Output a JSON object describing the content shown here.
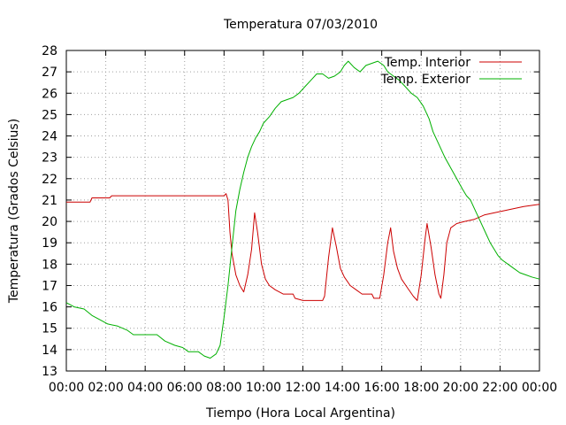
{
  "chart_data": {
    "type": "line",
    "title": "Temperatura 07/03/2010",
    "xlabel": "Tiempo (Hora Local Argentina)",
    "ylabel": "Temperatura (Grados Celsius)",
    "x_ticks": [
      "00:00",
      "02:00",
      "04:00",
      "06:00",
      "08:00",
      "10:00",
      "12:00",
      "14:00",
      "16:00",
      "18:00",
      "20:00",
      "22:00",
      "00:00"
    ],
    "y_ticks": [
      "13",
      "14",
      "15",
      "16",
      "17",
      "18",
      "19",
      "20",
      "21",
      "22",
      "23",
      "24",
      "25",
      "26",
      "27",
      "28"
    ],
    "xlim": [
      0,
      24
    ],
    "ylim": [
      13,
      28
    ],
    "grid": true,
    "legend_position": "top-right",
    "series": [
      {
        "name": "Temp. Interior",
        "color": "#cc0000",
        "points": [
          [
            0,
            20.9
          ],
          [
            1.2,
            20.9
          ],
          [
            1.3,
            21.1
          ],
          [
            2.2,
            21.1
          ],
          [
            2.3,
            21.2
          ],
          [
            8.0,
            21.2
          ],
          [
            8.1,
            21.3
          ],
          [
            8.2,
            21.0
          ],
          [
            8.3,
            19.5
          ],
          [
            8.4,
            18.5
          ],
          [
            8.6,
            17.5
          ],
          [
            8.8,
            17.0
          ],
          [
            9.0,
            16.7
          ],
          [
            9.2,
            17.5
          ],
          [
            9.4,
            18.7
          ],
          [
            9.55,
            20.4
          ],
          [
            9.7,
            19.5
          ],
          [
            9.9,
            18.0
          ],
          [
            10.1,
            17.3
          ],
          [
            10.3,
            17.0
          ],
          [
            10.6,
            16.8
          ],
          [
            11.0,
            16.6
          ],
          [
            11.5,
            16.6
          ],
          [
            11.6,
            16.4
          ],
          [
            12.0,
            16.3
          ],
          [
            13.0,
            16.3
          ],
          [
            13.1,
            16.5
          ],
          [
            13.3,
            18.3
          ],
          [
            13.5,
            19.7
          ],
          [
            13.7,
            18.8
          ],
          [
            13.9,
            17.8
          ],
          [
            14.1,
            17.4
          ],
          [
            14.4,
            17.0
          ],
          [
            14.7,
            16.8
          ],
          [
            15.0,
            16.6
          ],
          [
            15.5,
            16.6
          ],
          [
            15.6,
            16.4
          ],
          [
            15.9,
            16.4
          ],
          [
            16.1,
            17.5
          ],
          [
            16.3,
            19.0
          ],
          [
            16.45,
            19.7
          ],
          [
            16.6,
            18.6
          ],
          [
            16.8,
            17.8
          ],
          [
            17.0,
            17.3
          ],
          [
            17.3,
            16.9
          ],
          [
            17.6,
            16.5
          ],
          [
            17.8,
            16.3
          ],
          [
            18.0,
            17.5
          ],
          [
            18.2,
            19.2
          ],
          [
            18.3,
            19.9
          ],
          [
            18.5,
            18.8
          ],
          [
            18.7,
            17.5
          ],
          [
            18.9,
            16.6
          ],
          [
            19.0,
            16.4
          ],
          [
            19.15,
            17.5
          ],
          [
            19.3,
            19.0
          ],
          [
            19.5,
            19.7
          ],
          [
            19.8,
            19.9
          ],
          [
            20.2,
            20.0
          ],
          [
            20.7,
            20.1
          ],
          [
            21.2,
            20.3
          ],
          [
            21.7,
            20.4
          ],
          [
            22.2,
            20.5
          ],
          [
            22.7,
            20.6
          ],
          [
            23.2,
            20.7
          ],
          [
            24.0,
            20.8
          ]
        ]
      },
      {
        "name": "Temp. Exterior",
        "color": "#00b000",
        "points": [
          [
            0,
            16.2
          ],
          [
            0.4,
            16.0
          ],
          [
            0.9,
            15.9
          ],
          [
            1.3,
            15.6
          ],
          [
            1.7,
            15.4
          ],
          [
            2.1,
            15.2
          ],
          [
            2.6,
            15.1
          ],
          [
            3.1,
            14.9
          ],
          [
            3.4,
            14.7
          ],
          [
            4.0,
            14.7
          ],
          [
            4.6,
            14.7
          ],
          [
            5.0,
            14.4
          ],
          [
            5.5,
            14.2
          ],
          [
            5.9,
            14.1
          ],
          [
            6.2,
            13.9
          ],
          [
            6.7,
            13.9
          ],
          [
            7.0,
            13.7
          ],
          [
            7.3,
            13.6
          ],
          [
            7.6,
            13.8
          ],
          [
            7.8,
            14.2
          ],
          [
            8.0,
            15.5
          ],
          [
            8.2,
            17.0
          ],
          [
            8.4,
            18.8
          ],
          [
            8.6,
            20.5
          ],
          [
            8.8,
            21.5
          ],
          [
            9.0,
            22.3
          ],
          [
            9.2,
            23.0
          ],
          [
            9.4,
            23.5
          ],
          [
            9.6,
            23.9
          ],
          [
            9.8,
            24.2
          ],
          [
            10.0,
            24.6
          ],
          [
            10.3,
            24.9
          ],
          [
            10.6,
            25.3
          ],
          [
            10.9,
            25.6
          ],
          [
            11.2,
            25.7
          ],
          [
            11.5,
            25.8
          ],
          [
            11.8,
            26.0
          ],
          [
            12.1,
            26.3
          ],
          [
            12.4,
            26.6
          ],
          [
            12.7,
            26.9
          ],
          [
            13.0,
            26.9
          ],
          [
            13.3,
            26.7
          ],
          [
            13.6,
            26.8
          ],
          [
            13.9,
            27.0
          ],
          [
            14.1,
            27.3
          ],
          [
            14.3,
            27.5
          ],
          [
            14.6,
            27.2
          ],
          [
            14.9,
            27.0
          ],
          [
            15.2,
            27.3
          ],
          [
            15.5,
            27.4
          ],
          [
            15.8,
            27.5
          ],
          [
            16.1,
            27.3
          ],
          [
            16.3,
            27.0
          ],
          [
            16.6,
            26.8
          ],
          [
            16.9,
            26.6
          ],
          [
            17.2,
            26.3
          ],
          [
            17.5,
            26.0
          ],
          [
            17.8,
            25.8
          ],
          [
            18.1,
            25.4
          ],
          [
            18.4,
            24.8
          ],
          [
            18.6,
            24.2
          ],
          [
            18.9,
            23.6
          ],
          [
            19.2,
            23.0
          ],
          [
            19.5,
            22.5
          ],
          [
            19.8,
            22.0
          ],
          [
            20.1,
            21.5
          ],
          [
            20.3,
            21.2
          ],
          [
            20.5,
            21.0
          ],
          [
            20.7,
            20.6
          ],
          [
            20.9,
            20.2
          ],
          [
            21.1,
            19.8
          ],
          [
            21.3,
            19.4
          ],
          [
            21.5,
            19.0
          ],
          [
            21.7,
            18.7
          ],
          [
            21.9,
            18.4
          ],
          [
            22.1,
            18.2
          ],
          [
            22.4,
            18.0
          ],
          [
            22.7,
            17.8
          ],
          [
            23.0,
            17.6
          ],
          [
            23.3,
            17.5
          ],
          [
            23.6,
            17.4
          ],
          [
            24.0,
            17.3
          ]
        ]
      }
    ]
  }
}
